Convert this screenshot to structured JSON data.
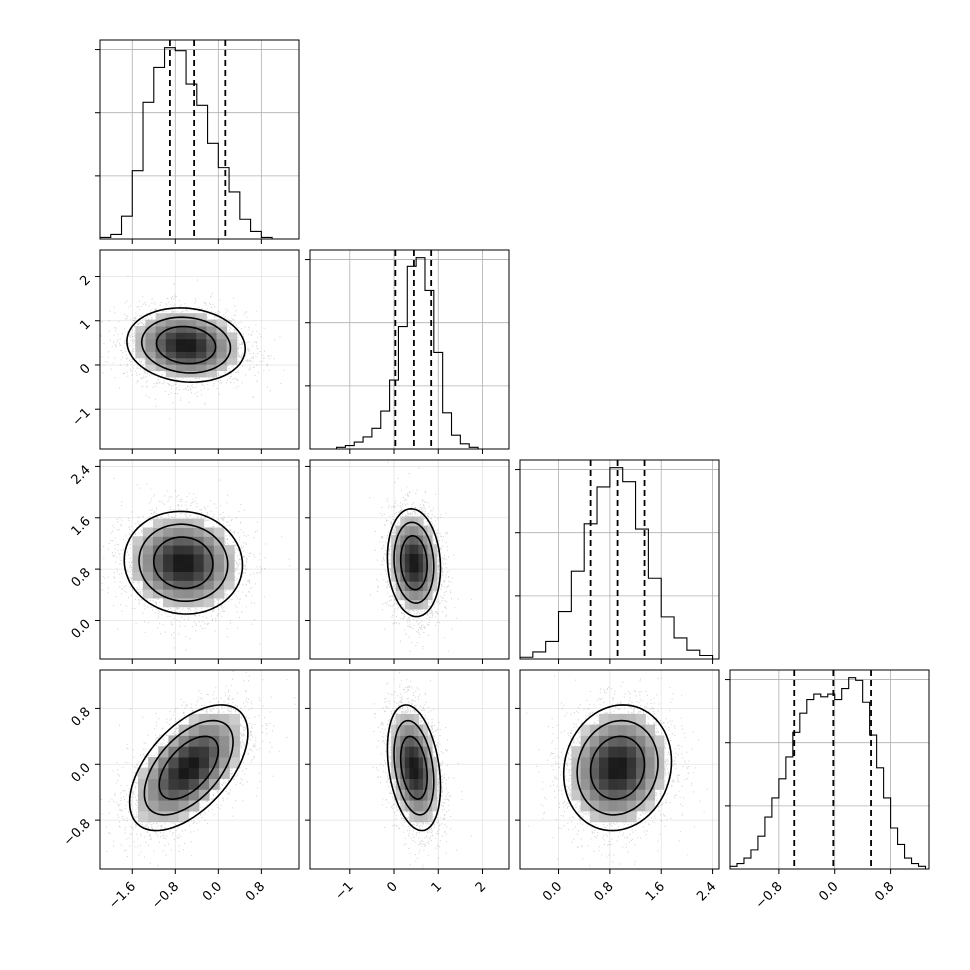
{
  "chart_data": {
    "type": "corner",
    "parameters": [
      {
        "name": "",
        "range": [
          -2.2,
          1.5
        ],
        "ticks": [
          -1.6,
          -0.8,
          0.0,
          0.8
        ],
        "tick_labels": [
          "−1.6",
          "−0.8",
          "0.0",
          "0.8"
        ],
        "quantiles": [
          -0.9,
          -0.45,
          0.13
        ],
        "histogram": {
          "bin_edges": [
            -2.2,
            -2.0,
            -1.8,
            -1.6,
            -1.4,
            -1.2,
            -1.0,
            -0.8,
            -0.6,
            -0.4,
            -0.2,
            0.0,
            0.2,
            0.4,
            0.6,
            0.8,
            1.0,
            1.2,
            1.4
          ],
          "counts": [
            1,
            3,
            15,
            45,
            90,
            113,
            126,
            124,
            102,
            88,
            63,
            47,
            31,
            13,
            5,
            1,
            0,
            0
          ]
        }
      },
      {
        "name": "",
        "range": [
          -1.9,
          2.6
        ],
        "ticks": [
          -1,
          0,
          1,
          2
        ],
        "tick_labels": [
          "−1",
          "0",
          "1",
          "2"
        ],
        "quantiles": [
          0.03,
          0.45,
          0.84
        ],
        "histogram": {
          "bin_edges": [
            -1.9,
            -1.7,
            -1.5,
            -1.3,
            -1.1,
            -0.9,
            -0.7,
            -0.5,
            -0.3,
            -0.1,
            0.1,
            0.3,
            0.5,
            0.7,
            0.9,
            1.1,
            1.3,
            1.5,
            1.7,
            1.9,
            2.1,
            2.3,
            2.5
          ],
          "counts": [
            0,
            0,
            0,
            1,
            2,
            4,
            7,
            12,
            22,
            40,
            71,
            106,
            111,
            92,
            56,
            21,
            8,
            3,
            1,
            0,
            0,
            0
          ]
        }
      },
      {
        "name": "",
        "range": [
          -0.6,
          2.5
        ],
        "ticks": [
          0.0,
          0.8,
          1.6,
          2.4
        ],
        "tick_labels": [
          "0.0",
          "0.8",
          "1.6",
          "2.4"
        ],
        "quantiles": [
          0.5,
          0.92,
          1.34
        ],
        "histogram": {
          "bin_edges": [
            -0.6,
            -0.4,
            -0.2,
            0.0,
            0.2,
            0.4,
            0.6,
            0.8,
            1.0,
            1.2,
            1.4,
            1.6,
            1.8,
            2.0,
            2.2,
            2.4
          ],
          "counts": [
            1,
            4,
            10,
            27,
            50,
            77,
            98,
            109,
            101,
            74,
            46,
            24,
            12,
            5,
            2
          ]
        }
      },
      {
        "name": "",
        "range": [
          -1.5,
          1.35
        ],
        "ticks": [
          -0.8,
          0.0,
          0.8
        ],
        "tick_labels": [
          "−0.8",
          "0.0",
          "0.8"
        ],
        "quantiles": [
          -0.58,
          -0.02,
          0.52
        ],
        "histogram": {
          "bin_edges": [
            -1.5,
            -1.4,
            -1.3,
            -1.2,
            -1.1,
            -1.0,
            -0.9,
            -0.8,
            -0.7,
            -0.6,
            -0.5,
            -0.4,
            -0.3,
            -0.2,
            -0.1,
            0.0,
            0.1,
            0.2,
            0.3,
            0.4,
            0.5,
            0.6,
            0.7,
            0.8,
            0.9,
            1.0,
            1.1,
            1.2,
            1.3
          ],
          "counts": [
            1,
            2,
            4,
            7,
            12,
            19,
            26,
            33,
            41,
            50,
            57,
            62,
            64,
            63,
            64,
            62,
            66,
            70,
            69,
            61,
            49,
            37,
            26,
            15,
            9,
            4,
            2,
            1
          ]
        }
      }
    ],
    "pairs": [
      {
        "x": 0,
        "y": 1,
        "mean": [
          -0.6,
          0.45
        ],
        "sd": [
          0.55,
          0.42
        ],
        "rho": -0.1
      },
      {
        "x": 0,
        "y": 2,
        "mean": [
          -0.65,
          0.9
        ],
        "sd": [
          0.55,
          0.4
        ],
        "rho": -0.05
      },
      {
        "x": 1,
        "y": 2,
        "mean": [
          0.45,
          0.9
        ],
        "sd": [
          0.3,
          0.42
        ],
        "rho": -0.1
      },
      {
        "x": 0,
        "y": 3,
        "mean": [
          -0.55,
          -0.05
        ],
        "sd": [
          0.55,
          0.45
        ],
        "rho": 0.55
      },
      {
        "x": 1,
        "y": 3,
        "mean": [
          0.45,
          -0.05
        ],
        "sd": [
          0.3,
          0.45
        ],
        "rho": -0.3
      },
      {
        "x": 2,
        "y": 3,
        "mean": [
          0.92,
          -0.05
        ],
        "sd": [
          0.42,
          0.45
        ],
        "rho": 0.1
      }
    ],
    "contour_levels_sigma": [
      1,
      1.5,
      2
    ],
    "grid": true,
    "legend": "none"
  }
}
